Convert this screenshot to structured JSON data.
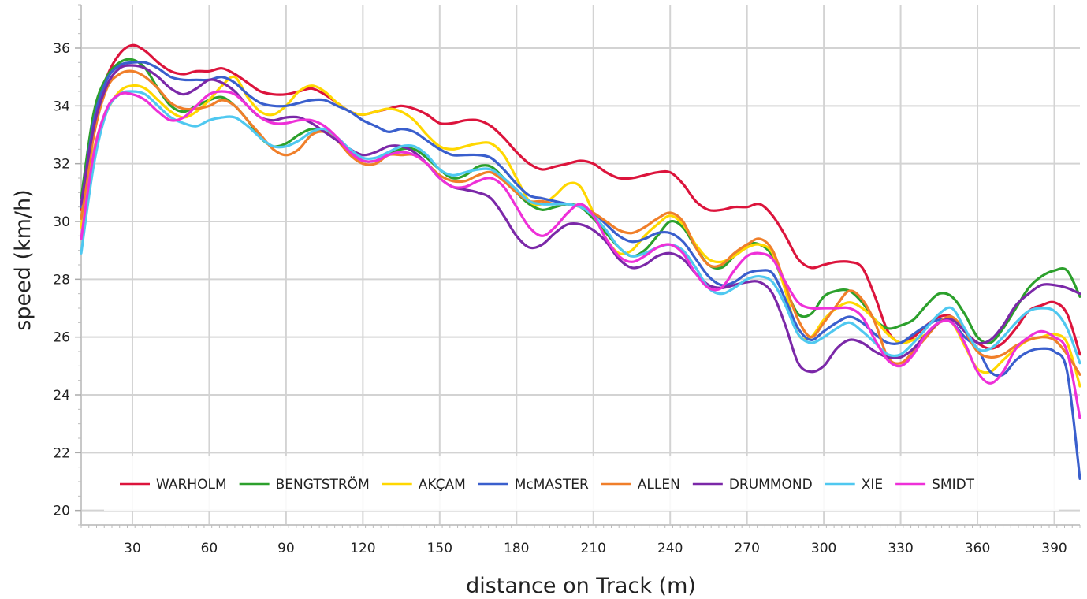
{
  "chart_data": {
    "type": "line",
    "xlabel": "distance on Track (m)",
    "ylabel": "speed (km/h)",
    "xlim": [
      10,
      400
    ],
    "ylim": [
      19.5,
      37.5
    ],
    "x_ticks": [
      30,
      60,
      90,
      120,
      150,
      180,
      210,
      240,
      270,
      300,
      330,
      360,
      390
    ],
    "y_ticks": [
      20,
      22,
      24,
      26,
      28,
      30,
      32,
      34,
      36
    ],
    "grid": true,
    "legend_position": "bottom-inside",
    "x": [
      10,
      15,
      20,
      25,
      30,
      35,
      40,
      45,
      50,
      55,
      60,
      65,
      70,
      75,
      80,
      85,
      90,
      95,
      100,
      105,
      110,
      115,
      120,
      125,
      130,
      135,
      140,
      145,
      150,
      155,
      160,
      165,
      170,
      175,
      180,
      185,
      190,
      195,
      200,
      205,
      210,
      215,
      220,
      225,
      230,
      235,
      240,
      245,
      250,
      255,
      260,
      265,
      270,
      275,
      280,
      285,
      290,
      295,
      300,
      305,
      310,
      315,
      320,
      325,
      330,
      335,
      340,
      345,
      350,
      355,
      360,
      365,
      370,
      375,
      380,
      385,
      390,
      395,
      400
    ],
    "series": [
      {
        "name": "WARHOLM",
        "color": "#dc143c",
        "values": [
          30.4,
          33.5,
          35.0,
          35.8,
          36.1,
          35.9,
          35.5,
          35.2,
          35.1,
          35.2,
          35.2,
          35.3,
          35.1,
          34.8,
          34.5,
          34.4,
          34.4,
          34.5,
          34.6,
          34.4,
          34.1,
          33.8,
          33.7,
          33.8,
          33.9,
          34.0,
          33.9,
          33.7,
          33.4,
          33.4,
          33.5,
          33.5,
          33.3,
          32.9,
          32.4,
          32.0,
          31.8,
          31.9,
          32.0,
          32.1,
          32.0,
          31.7,
          31.5,
          31.5,
          31.6,
          31.7,
          31.7,
          31.3,
          30.7,
          30.4,
          30.4,
          30.5,
          30.5,
          30.6,
          30.2,
          29.5,
          28.7,
          28.4,
          28.5,
          28.6,
          28.6,
          28.4,
          27.4,
          26.2,
          25.8,
          26.0,
          26.4,
          26.7,
          26.7,
          26.2,
          25.8,
          25.6,
          25.8,
          26.3,
          26.9,
          27.1,
          27.2,
          26.8,
          25.4
        ]
      },
      {
        "name": "BENGTSTRÖM",
        "color": "#2ca02c",
        "values": [
          30.8,
          33.8,
          35.0,
          35.5,
          35.6,
          35.3,
          34.6,
          34.0,
          33.8,
          34.0,
          34.2,
          34.3,
          34.0,
          33.5,
          32.9,
          32.6,
          32.7,
          33.0,
          33.2,
          33.1,
          32.8,
          32.4,
          32.1,
          32.1,
          32.3,
          32.5,
          32.5,
          32.2,
          31.8,
          31.5,
          31.6,
          31.9,
          31.9,
          31.5,
          31.0,
          30.6,
          30.4,
          30.5,
          30.6,
          30.5,
          30.1,
          29.6,
          29.1,
          28.8,
          29.0,
          29.5,
          30.0,
          29.8,
          29.1,
          28.5,
          28.4,
          28.8,
          29.2,
          29.2,
          28.8,
          27.7,
          26.8,
          26.8,
          27.4,
          27.6,
          27.6,
          27.2,
          26.6,
          26.3,
          26.4,
          26.6,
          27.1,
          27.5,
          27.4,
          26.8,
          26.0,
          25.8,
          26.3,
          27.0,
          27.7,
          28.1,
          28.3,
          28.3,
          27.4
        ]
      },
      {
        "name": "AKÇAM",
        "color": "#ffd700",
        "values": [
          29.8,
          32.5,
          33.8,
          34.5,
          34.7,
          34.6,
          34.2,
          33.8,
          33.6,
          33.8,
          34.2,
          34.7,
          35.0,
          34.3,
          33.8,
          33.7,
          34.0,
          34.5,
          34.7,
          34.5,
          34.1,
          33.8,
          33.7,
          33.8,
          33.9,
          33.8,
          33.5,
          33.0,
          32.6,
          32.5,
          32.6,
          32.7,
          32.7,
          32.3,
          31.5,
          30.7,
          30.6,
          30.9,
          31.3,
          31.2,
          30.3,
          29.4,
          28.9,
          29.0,
          29.5,
          29.9,
          30.2,
          29.9,
          29.2,
          28.7,
          28.6,
          28.8,
          29.1,
          29.2,
          28.9,
          27.6,
          26.1,
          26.0,
          26.6,
          27.0,
          27.2,
          27.0,
          26.6,
          26.1,
          25.8,
          25.9,
          26.1,
          26.5,
          26.5,
          25.7,
          24.9,
          24.8,
          25.2,
          25.6,
          25.9,
          26.0,
          26.1,
          25.8,
          24.3
        ]
      },
      {
        "name": "McMASTER",
        "color": "#3a5fcd",
        "values": [
          30.5,
          33.5,
          34.9,
          35.4,
          35.5,
          35.5,
          35.3,
          35.0,
          34.9,
          34.9,
          34.9,
          35.0,
          34.8,
          34.4,
          34.1,
          34.0,
          34.0,
          34.1,
          34.2,
          34.2,
          34.0,
          33.8,
          33.5,
          33.3,
          33.1,
          33.2,
          33.1,
          32.8,
          32.5,
          32.3,
          32.3,
          32.3,
          32.2,
          31.8,
          31.3,
          30.9,
          30.8,
          30.7,
          30.6,
          30.5,
          30.3,
          29.9,
          29.5,
          29.3,
          29.4,
          29.6,
          29.6,
          29.3,
          28.7,
          28.1,
          27.8,
          27.9,
          28.2,
          28.3,
          28.2,
          27.3,
          26.3,
          25.9,
          26.2,
          26.5,
          26.7,
          26.5,
          26.1,
          25.8,
          25.8,
          26.1,
          26.4,
          26.6,
          26.5,
          26.0,
          25.6,
          24.8,
          24.7,
          25.2,
          25.5,
          25.6,
          25.5,
          24.8,
          21.1
        ]
      },
      {
        "name": "ALLEN",
        "color": "#f07f2a",
        "values": [
          30.1,
          33.0,
          34.6,
          35.1,
          35.2,
          35.0,
          34.6,
          34.1,
          33.9,
          33.9,
          34.0,
          34.2,
          34.0,
          33.5,
          33.0,
          32.5,
          32.3,
          32.5,
          33.0,
          33.1,
          32.8,
          32.3,
          32.0,
          32.0,
          32.3,
          32.3,
          32.3,
          32.0,
          31.6,
          31.4,
          31.4,
          31.6,
          31.7,
          31.4,
          31.0,
          30.7,
          30.7,
          30.6,
          30.6,
          30.5,
          30.3,
          30.0,
          29.7,
          29.6,
          29.8,
          30.1,
          30.3,
          30.0,
          29.1,
          28.5,
          28.5,
          28.9,
          29.2,
          29.4,
          29.0,
          27.8,
          26.6,
          26.0,
          26.5,
          27.1,
          27.6,
          27.3,
          26.5,
          25.3,
          25.1,
          25.5,
          26.0,
          26.5,
          26.7,
          26.2,
          25.5,
          25.3,
          25.4,
          25.7,
          25.9,
          26.0,
          25.9,
          25.4,
          24.7
        ]
      },
      {
        "name": "DRUMMOND",
        "color": "#7b28a8",
        "values": [
          30.6,
          33.3,
          34.7,
          35.3,
          35.4,
          35.3,
          35.0,
          34.6,
          34.4,
          34.6,
          34.9,
          34.8,
          34.5,
          34.0,
          33.6,
          33.5,
          33.6,
          33.6,
          33.4,
          33.1,
          32.8,
          32.5,
          32.3,
          32.4,
          32.6,
          32.6,
          32.4,
          32.0,
          31.5,
          31.2,
          31.1,
          31.0,
          30.8,
          30.2,
          29.5,
          29.1,
          29.2,
          29.6,
          29.9,
          29.9,
          29.7,
          29.3,
          28.7,
          28.4,
          28.5,
          28.8,
          28.9,
          28.7,
          28.2,
          27.8,
          27.7,
          27.8,
          27.9,
          27.9,
          27.5,
          26.4,
          25.1,
          24.8,
          25.0,
          25.6,
          25.9,
          25.8,
          25.5,
          25.3,
          25.3,
          25.6,
          26.1,
          26.5,
          26.6,
          26.2,
          25.8,
          25.9,
          26.4,
          27.1,
          27.5,
          27.8,
          27.8,
          27.7,
          27.5
        ]
      },
      {
        "name": "XIE",
        "color": "#4fc8f0",
        "values": [
          28.9,
          32.0,
          33.8,
          34.4,
          34.5,
          34.4,
          34.0,
          33.6,
          33.4,
          33.3,
          33.5,
          33.6,
          33.6,
          33.3,
          32.9,
          32.6,
          32.6,
          32.8,
          33.1,
          33.2,
          32.9,
          32.5,
          32.2,
          32.2,
          32.4,
          32.6,
          32.6,
          32.3,
          31.8,
          31.6,
          31.7,
          31.8,
          31.8,
          31.5,
          31.1,
          30.7,
          30.6,
          30.6,
          30.6,
          30.5,
          30.2,
          29.7,
          29.1,
          28.8,
          28.9,
          29.1,
          29.2,
          29.0,
          28.4,
          27.7,
          27.5,
          27.7,
          28.0,
          28.1,
          27.9,
          27.1,
          26.1,
          25.8,
          26.0,
          26.3,
          26.5,
          26.2,
          25.8,
          25.4,
          25.4,
          25.8,
          26.3,
          26.8,
          27.0,
          26.3,
          25.6,
          25.6,
          26.0,
          26.5,
          26.9,
          27.0,
          26.9,
          26.3,
          25.1
        ]
      },
      {
        "name": "SMIDT",
        "color": "#ee30d8",
        "values": [
          29.4,
          32.4,
          33.9,
          34.4,
          34.4,
          34.2,
          33.8,
          33.5,
          33.6,
          34.0,
          34.4,
          34.5,
          34.4,
          34.0,
          33.6,
          33.4,
          33.4,
          33.5,
          33.5,
          33.3,
          32.9,
          32.4,
          32.1,
          32.1,
          32.3,
          32.4,
          32.3,
          32.0,
          31.5,
          31.2,
          31.2,
          31.4,
          31.5,
          31.2,
          30.5,
          29.8,
          29.5,
          29.8,
          30.3,
          30.6,
          30.2,
          29.4,
          28.8,
          28.6,
          28.8,
          29.1,
          29.2,
          28.9,
          28.2,
          27.7,
          27.7,
          28.3,
          28.8,
          28.9,
          28.7,
          27.9,
          27.2,
          27.0,
          27.0,
          27.0,
          27.0,
          26.7,
          25.9,
          25.2,
          25.0,
          25.4,
          26.1,
          26.5,
          26.5,
          25.8,
          24.8,
          24.4,
          24.8,
          25.6,
          26.0,
          26.2,
          26.0,
          25.5,
          23.2
        ]
      }
    ]
  }
}
